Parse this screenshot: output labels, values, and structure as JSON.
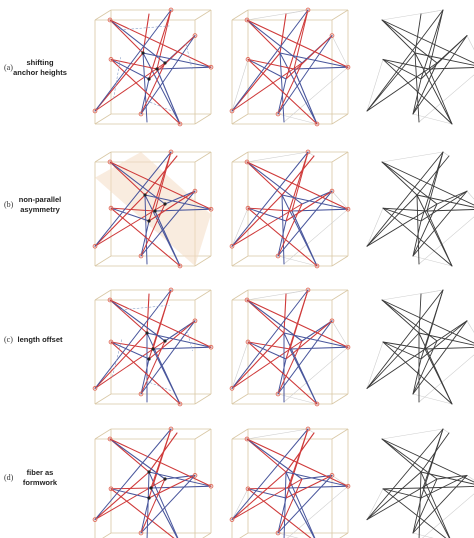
{
  "colors": {
    "red": "#cf3a3a",
    "blue": "#49569c",
    "dark": "#3b3b3b",
    "cube": "#d8c7a4",
    "anchor": "#e06a5a",
    "shade": "#f4dcc4",
    "ghost": "#cfcfcf"
  },
  "rows": [
    {
      "tag": "(a)",
      "label": [
        "shifting",
        "anchor heights"
      ]
    },
    {
      "tag": "(b)",
      "label": [
        "non-parallel",
        "asymmetry"
      ]
    },
    {
      "tag": "(c)",
      "label": [
        "length offset"
      ]
    },
    {
      "tag": "(d)",
      "label": [
        "fiber as",
        "formwork"
      ]
    }
  ]
}
